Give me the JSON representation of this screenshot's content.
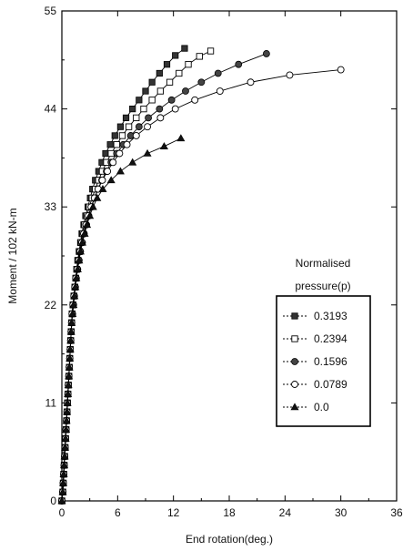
{
  "chart_data": {
    "type": "line",
    "title": "",
    "xlabel": "End rotation(deg.)",
    "ylabel": "Moment / 102 kN-m",
    "xlim": [
      0,
      36
    ],
    "ylim": [
      0,
      55
    ],
    "xticks": [
      "0",
      "6",
      "12",
      "18",
      "24",
      "30",
      "36"
    ],
    "yticks": [
      "0",
      "11",
      "22",
      "33",
      "44",
      "55"
    ],
    "legend": {
      "title_line1": "Normalised",
      "title_line2": "pressure(p)",
      "placement": "right-middle"
    },
    "series": [
      {
        "name": "0.3193",
        "marker": "square-filled",
        "points": [
          [
            0,
            0
          ],
          [
            0.1,
            1
          ],
          [
            0.15,
            2
          ],
          [
            0.2,
            3
          ],
          [
            0.25,
            4
          ],
          [
            0.3,
            5
          ],
          [
            0.35,
            6
          ],
          [
            0.4,
            7
          ],
          [
            0.45,
            8
          ],
          [
            0.5,
            9
          ],
          [
            0.55,
            10
          ],
          [
            0.6,
            11
          ],
          [
            0.65,
            12
          ],
          [
            0.7,
            13
          ],
          [
            0.75,
            14
          ],
          [
            0.8,
            15
          ],
          [
            0.85,
            16
          ],
          [
            0.9,
            17
          ],
          [
            0.95,
            18
          ],
          [
            1.0,
            19
          ],
          [
            1.05,
            20
          ],
          [
            1.1,
            21
          ],
          [
            1.2,
            22
          ],
          [
            1.3,
            23
          ],
          [
            1.4,
            24
          ],
          [
            1.5,
            25
          ],
          [
            1.6,
            26
          ],
          [
            1.7,
            27
          ],
          [
            1.85,
            28
          ],
          [
            2.0,
            29
          ],
          [
            2.15,
            30
          ],
          [
            2.35,
            31
          ],
          [
            2.55,
            32
          ],
          [
            2.8,
            33
          ],
          [
            3.05,
            34
          ],
          [
            3.3,
            35
          ],
          [
            3.6,
            36
          ],
          [
            3.95,
            37
          ],
          [
            4.3,
            38
          ],
          [
            4.7,
            39
          ],
          [
            5.2,
            40
          ],
          [
            5.7,
            41
          ],
          [
            6.3,
            42
          ],
          [
            6.9,
            43
          ],
          [
            7.6,
            44
          ],
          [
            8.3,
            45
          ],
          [
            9.0,
            46
          ],
          [
            9.7,
            47
          ],
          [
            10.5,
            48
          ],
          [
            11.3,
            49
          ],
          [
            12.2,
            50
          ],
          [
            13.2,
            50.8
          ]
        ]
      },
      {
        "name": "0.2394",
        "marker": "square-open",
        "points": [
          [
            0,
            0
          ],
          [
            0.1,
            1
          ],
          [
            0.15,
            2
          ],
          [
            0.2,
            3
          ],
          [
            0.25,
            4
          ],
          [
            0.3,
            5
          ],
          [
            0.35,
            6
          ],
          [
            0.4,
            7
          ],
          [
            0.45,
            8
          ],
          [
            0.5,
            9
          ],
          [
            0.55,
            10
          ],
          [
            0.6,
            11
          ],
          [
            0.65,
            12
          ],
          [
            0.7,
            13
          ],
          [
            0.75,
            14
          ],
          [
            0.8,
            15
          ],
          [
            0.85,
            16
          ],
          [
            0.9,
            17
          ],
          [
            0.95,
            18
          ],
          [
            1.0,
            19
          ],
          [
            1.05,
            20
          ],
          [
            1.1,
            21
          ],
          [
            1.2,
            22
          ],
          [
            1.3,
            23
          ],
          [
            1.4,
            24
          ],
          [
            1.5,
            25
          ],
          [
            1.6,
            26
          ],
          [
            1.75,
            27
          ],
          [
            1.9,
            28
          ],
          [
            2.05,
            29
          ],
          [
            2.25,
            30
          ],
          [
            2.45,
            31
          ],
          [
            2.7,
            32
          ],
          [
            2.95,
            33
          ],
          [
            3.25,
            34
          ],
          [
            3.6,
            35
          ],
          [
            3.95,
            36
          ],
          [
            4.35,
            37
          ],
          [
            4.8,
            38
          ],
          [
            5.3,
            39
          ],
          [
            5.9,
            40
          ],
          [
            6.5,
            41
          ],
          [
            7.2,
            42
          ],
          [
            8.0,
            43
          ],
          [
            8.8,
            44
          ],
          [
            9.7,
            45
          ],
          [
            10.6,
            46
          ],
          [
            11.6,
            47
          ],
          [
            12.6,
            48
          ],
          [
            13.6,
            49
          ],
          [
            14.8,
            49.9
          ],
          [
            16.0,
            50.5
          ]
        ]
      },
      {
        "name": "0.1596",
        "marker": "circle-filled",
        "points": [
          [
            0,
            0
          ],
          [
            0.1,
            1
          ],
          [
            0.15,
            2
          ],
          [
            0.2,
            3
          ],
          [
            0.25,
            4
          ],
          [
            0.3,
            5
          ],
          [
            0.35,
            6
          ],
          [
            0.4,
            7
          ],
          [
            0.45,
            8
          ],
          [
            0.5,
            9
          ],
          [
            0.55,
            10
          ],
          [
            0.6,
            11
          ],
          [
            0.65,
            12
          ],
          [
            0.7,
            13
          ],
          [
            0.75,
            14
          ],
          [
            0.8,
            15
          ],
          [
            0.85,
            16
          ],
          [
            0.9,
            17
          ],
          [
            0.95,
            18
          ],
          [
            1.0,
            19
          ],
          [
            1.05,
            20
          ],
          [
            1.15,
            21
          ],
          [
            1.25,
            22
          ],
          [
            1.35,
            23
          ],
          [
            1.45,
            24
          ],
          [
            1.55,
            25
          ],
          [
            1.7,
            26
          ],
          [
            1.85,
            27
          ],
          [
            2.0,
            28
          ],
          [
            2.2,
            29
          ],
          [
            2.4,
            30
          ],
          [
            2.65,
            31
          ],
          [
            2.9,
            32
          ],
          [
            3.2,
            33
          ],
          [
            3.5,
            34
          ],
          [
            3.9,
            35
          ],
          [
            4.3,
            36
          ],
          [
            4.8,
            37
          ],
          [
            5.3,
            38
          ],
          [
            5.9,
            39
          ],
          [
            6.6,
            40
          ],
          [
            7.4,
            41
          ],
          [
            8.3,
            42
          ],
          [
            9.3,
            43
          ],
          [
            10.5,
            44
          ],
          [
            11.8,
            45
          ],
          [
            13.3,
            46
          ],
          [
            15.0,
            47
          ],
          [
            16.8,
            48
          ],
          [
            19.0,
            49
          ],
          [
            22.0,
            50.2
          ]
        ]
      },
      {
        "name": "0.0789",
        "marker": "circle-open",
        "points": [
          [
            0,
            0
          ],
          [
            0.1,
            1
          ],
          [
            0.15,
            2
          ],
          [
            0.2,
            3
          ],
          [
            0.25,
            4
          ],
          [
            0.3,
            5
          ],
          [
            0.35,
            6
          ],
          [
            0.4,
            7
          ],
          [
            0.45,
            8
          ],
          [
            0.5,
            9
          ],
          [
            0.55,
            10
          ],
          [
            0.6,
            11
          ],
          [
            0.65,
            12
          ],
          [
            0.7,
            13
          ],
          [
            0.75,
            14
          ],
          [
            0.8,
            15
          ],
          [
            0.85,
            16
          ],
          [
            0.9,
            17
          ],
          [
            0.95,
            18
          ],
          [
            1.0,
            19
          ],
          [
            1.05,
            20
          ],
          [
            1.1,
            21
          ],
          [
            1.2,
            22
          ],
          [
            1.3,
            23
          ],
          [
            1.4,
            24
          ],
          [
            1.5,
            25
          ],
          [
            1.65,
            26
          ],
          [
            1.8,
            27
          ],
          [
            1.95,
            28
          ],
          [
            2.15,
            29
          ],
          [
            2.35,
            30
          ],
          [
            2.6,
            31
          ],
          [
            2.85,
            32
          ],
          [
            3.15,
            33
          ],
          [
            3.5,
            34
          ],
          [
            3.9,
            35
          ],
          [
            4.35,
            36
          ],
          [
            4.9,
            37
          ],
          [
            5.5,
            38
          ],
          [
            6.2,
            39
          ],
          [
            7.0,
            40
          ],
          [
            8.0,
            41
          ],
          [
            9.2,
            42
          ],
          [
            10.6,
            43
          ],
          [
            12.2,
            44
          ],
          [
            14.3,
            45
          ],
          [
            17.0,
            46
          ],
          [
            20.3,
            47
          ],
          [
            24.5,
            47.8
          ],
          [
            30.0,
            48.4
          ]
        ]
      },
      {
        "name": "0.0",
        "marker": "triangle-filled",
        "points": [
          [
            0,
            0
          ],
          [
            0.1,
            1
          ],
          [
            0.15,
            2
          ],
          [
            0.2,
            3
          ],
          [
            0.25,
            4
          ],
          [
            0.3,
            5
          ],
          [
            0.35,
            6
          ],
          [
            0.4,
            7
          ],
          [
            0.45,
            8
          ],
          [
            0.5,
            9
          ],
          [
            0.55,
            10
          ],
          [
            0.6,
            11
          ],
          [
            0.65,
            12
          ],
          [
            0.7,
            13
          ],
          [
            0.75,
            14
          ],
          [
            0.8,
            15
          ],
          [
            0.85,
            16
          ],
          [
            0.9,
            17
          ],
          [
            0.95,
            18
          ],
          [
            1.0,
            19
          ],
          [
            1.05,
            20
          ],
          [
            1.15,
            21
          ],
          [
            1.25,
            22
          ],
          [
            1.35,
            23
          ],
          [
            1.45,
            24
          ],
          [
            1.55,
            25
          ],
          [
            1.7,
            26
          ],
          [
            1.85,
            27
          ],
          [
            2.0,
            28
          ],
          [
            2.2,
            29
          ],
          [
            2.45,
            30
          ],
          [
            2.7,
            31
          ],
          [
            3.0,
            32
          ],
          [
            3.35,
            33
          ],
          [
            3.8,
            34
          ],
          [
            4.4,
            35
          ],
          [
            5.3,
            36
          ],
          [
            6.3,
            37
          ],
          [
            7.6,
            38
          ],
          [
            9.2,
            39
          ],
          [
            11.0,
            39.8
          ],
          [
            12.8,
            40.7
          ]
        ]
      }
    ]
  }
}
